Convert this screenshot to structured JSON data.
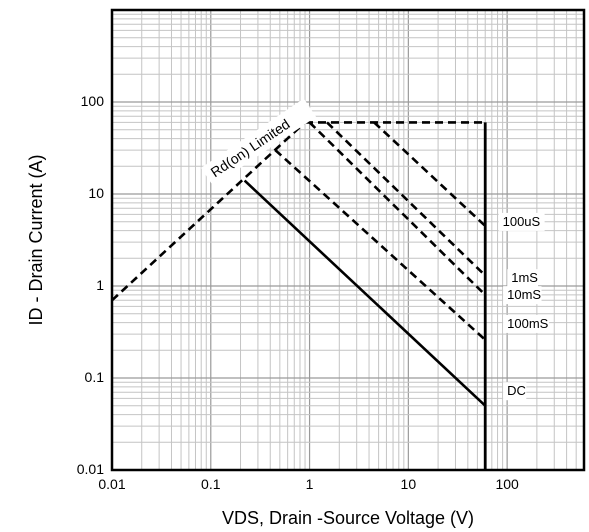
{
  "chart_data": {
    "type": "line",
    "title": "",
    "xlabel": "VDS, Drain -Source Voltage (V)",
    "ylabel": "ID - Drain Current (A)",
    "x_scale": "log",
    "y_scale": "log",
    "xlim": [
      0.01,
      600
    ],
    "ylim": [
      0.01,
      1000
    ],
    "grid": true,
    "x_ticks": [
      {
        "value": 0.01,
        "label": "0.01"
      },
      {
        "value": 0.1,
        "label": "0.1"
      },
      {
        "value": 1,
        "label": "1"
      },
      {
        "value": 10,
        "label": "10"
      },
      {
        "value": 100,
        "label": "100"
      }
    ],
    "y_ticks": [
      {
        "value": 0.01,
        "label": "0.01"
      },
      {
        "value": 0.1,
        "label": "0.1"
      },
      {
        "value": 1,
        "label": "1"
      },
      {
        "value": 10,
        "label": "10"
      },
      {
        "value": 100,
        "label": "100"
      }
    ],
    "vds_limit": 60,
    "series": [
      {
        "name": "Rd(on) Limited",
        "style": "dashed",
        "points": [
          [
            0.01,
            0.7
          ],
          [
            0.9,
            60
          ]
        ]
      },
      {
        "name": "",
        "style": "dashed",
        "points": [
          [
            0.9,
            60
          ],
          [
            60,
            60
          ]
        ]
      },
      {
        "name": "100uS",
        "style": "dashed",
        "points": [
          [
            4.5,
            60
          ],
          [
            60,
            4.5
          ]
        ]
      },
      {
        "name": "1mS",
        "style": "dashed",
        "points": [
          [
            1.5,
            60
          ],
          [
            60,
            1.3
          ]
        ]
      },
      {
        "name": "10mS",
        "style": "dashed",
        "points": [
          [
            1.0,
            60
          ],
          [
            60,
            0.8
          ]
        ]
      },
      {
        "name": "100mS",
        "style": "dashed",
        "points": [
          [
            0.45,
            30
          ],
          [
            60,
            0.26
          ]
        ]
      },
      {
        "name": "DC",
        "style": "solid",
        "points": [
          [
            0.22,
            14
          ],
          [
            60,
            0.05
          ]
        ]
      }
    ],
    "labels": [
      {
        "text": "Rd(on) Limited",
        "x": 0.11,
        "y": 15,
        "rotate": -34
      },
      {
        "text": "100uS",
        "x": 90,
        "y": 4.5
      },
      {
        "text": "1mS",
        "x": 110,
        "y": 1.1
      },
      {
        "text": "10mS",
        "x": 100,
        "y": 0.72
      },
      {
        "text": "100mS",
        "x": 100,
        "y": 0.35
      },
      {
        "text": "DC",
        "x": 100,
        "y": 0.065
      }
    ]
  }
}
